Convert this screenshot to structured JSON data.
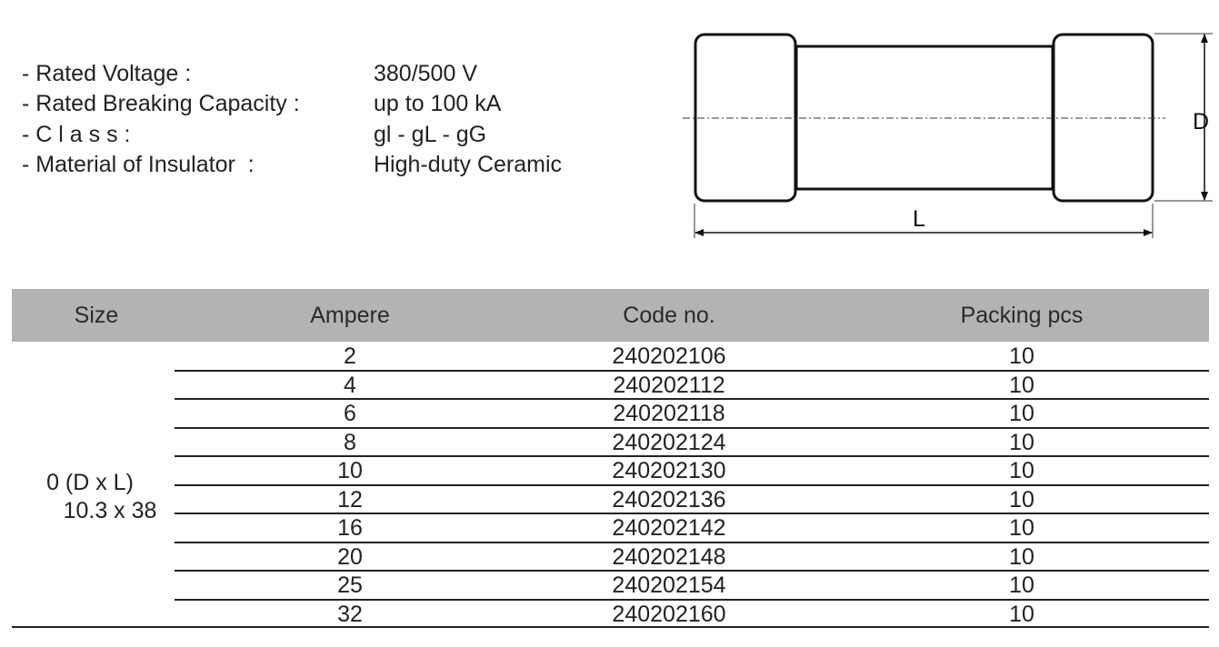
{
  "specs": [
    {
      "label": "- Rated Voltage :",
      "value": "380/500 V"
    },
    {
      "label": "- Rated Breaking Capacity :",
      "value": "up to 100 kA"
    },
    {
      "label": "- C l a s s :",
      "value": "gl - gL - gG"
    },
    {
      "label": "- Material of Insulator  :",
      "value": "High-duty Ceramic"
    }
  ],
  "diagram": {
    "d_label": "D",
    "l_label": "L"
  },
  "table": {
    "headers": [
      "Size",
      "Ampere",
      "Code no.",
      "Packing pcs"
    ],
    "size_line1": "0 (D x L)",
    "size_line2": "10.3 x 38",
    "rows": [
      {
        "ampere": "2",
        "code": "240202106",
        "packing": "10"
      },
      {
        "ampere": "4",
        "code": "240202112",
        "packing": "10"
      },
      {
        "ampere": "6",
        "code": "240202118",
        "packing": "10"
      },
      {
        "ampere": "8",
        "code": "240202124",
        "packing": "10"
      },
      {
        "ampere": "10",
        "code": "240202130",
        "packing": "10"
      },
      {
        "ampere": "12",
        "code": "240202136",
        "packing": "10"
      },
      {
        "ampere": "16",
        "code": "240202142",
        "packing": "10"
      },
      {
        "ampere": "20",
        "code": "240202148",
        "packing": "10"
      },
      {
        "ampere": "25",
        "code": "240202154",
        "packing": "10"
      },
      {
        "ampere": "32",
        "code": "240202160",
        "packing": "10"
      }
    ]
  }
}
